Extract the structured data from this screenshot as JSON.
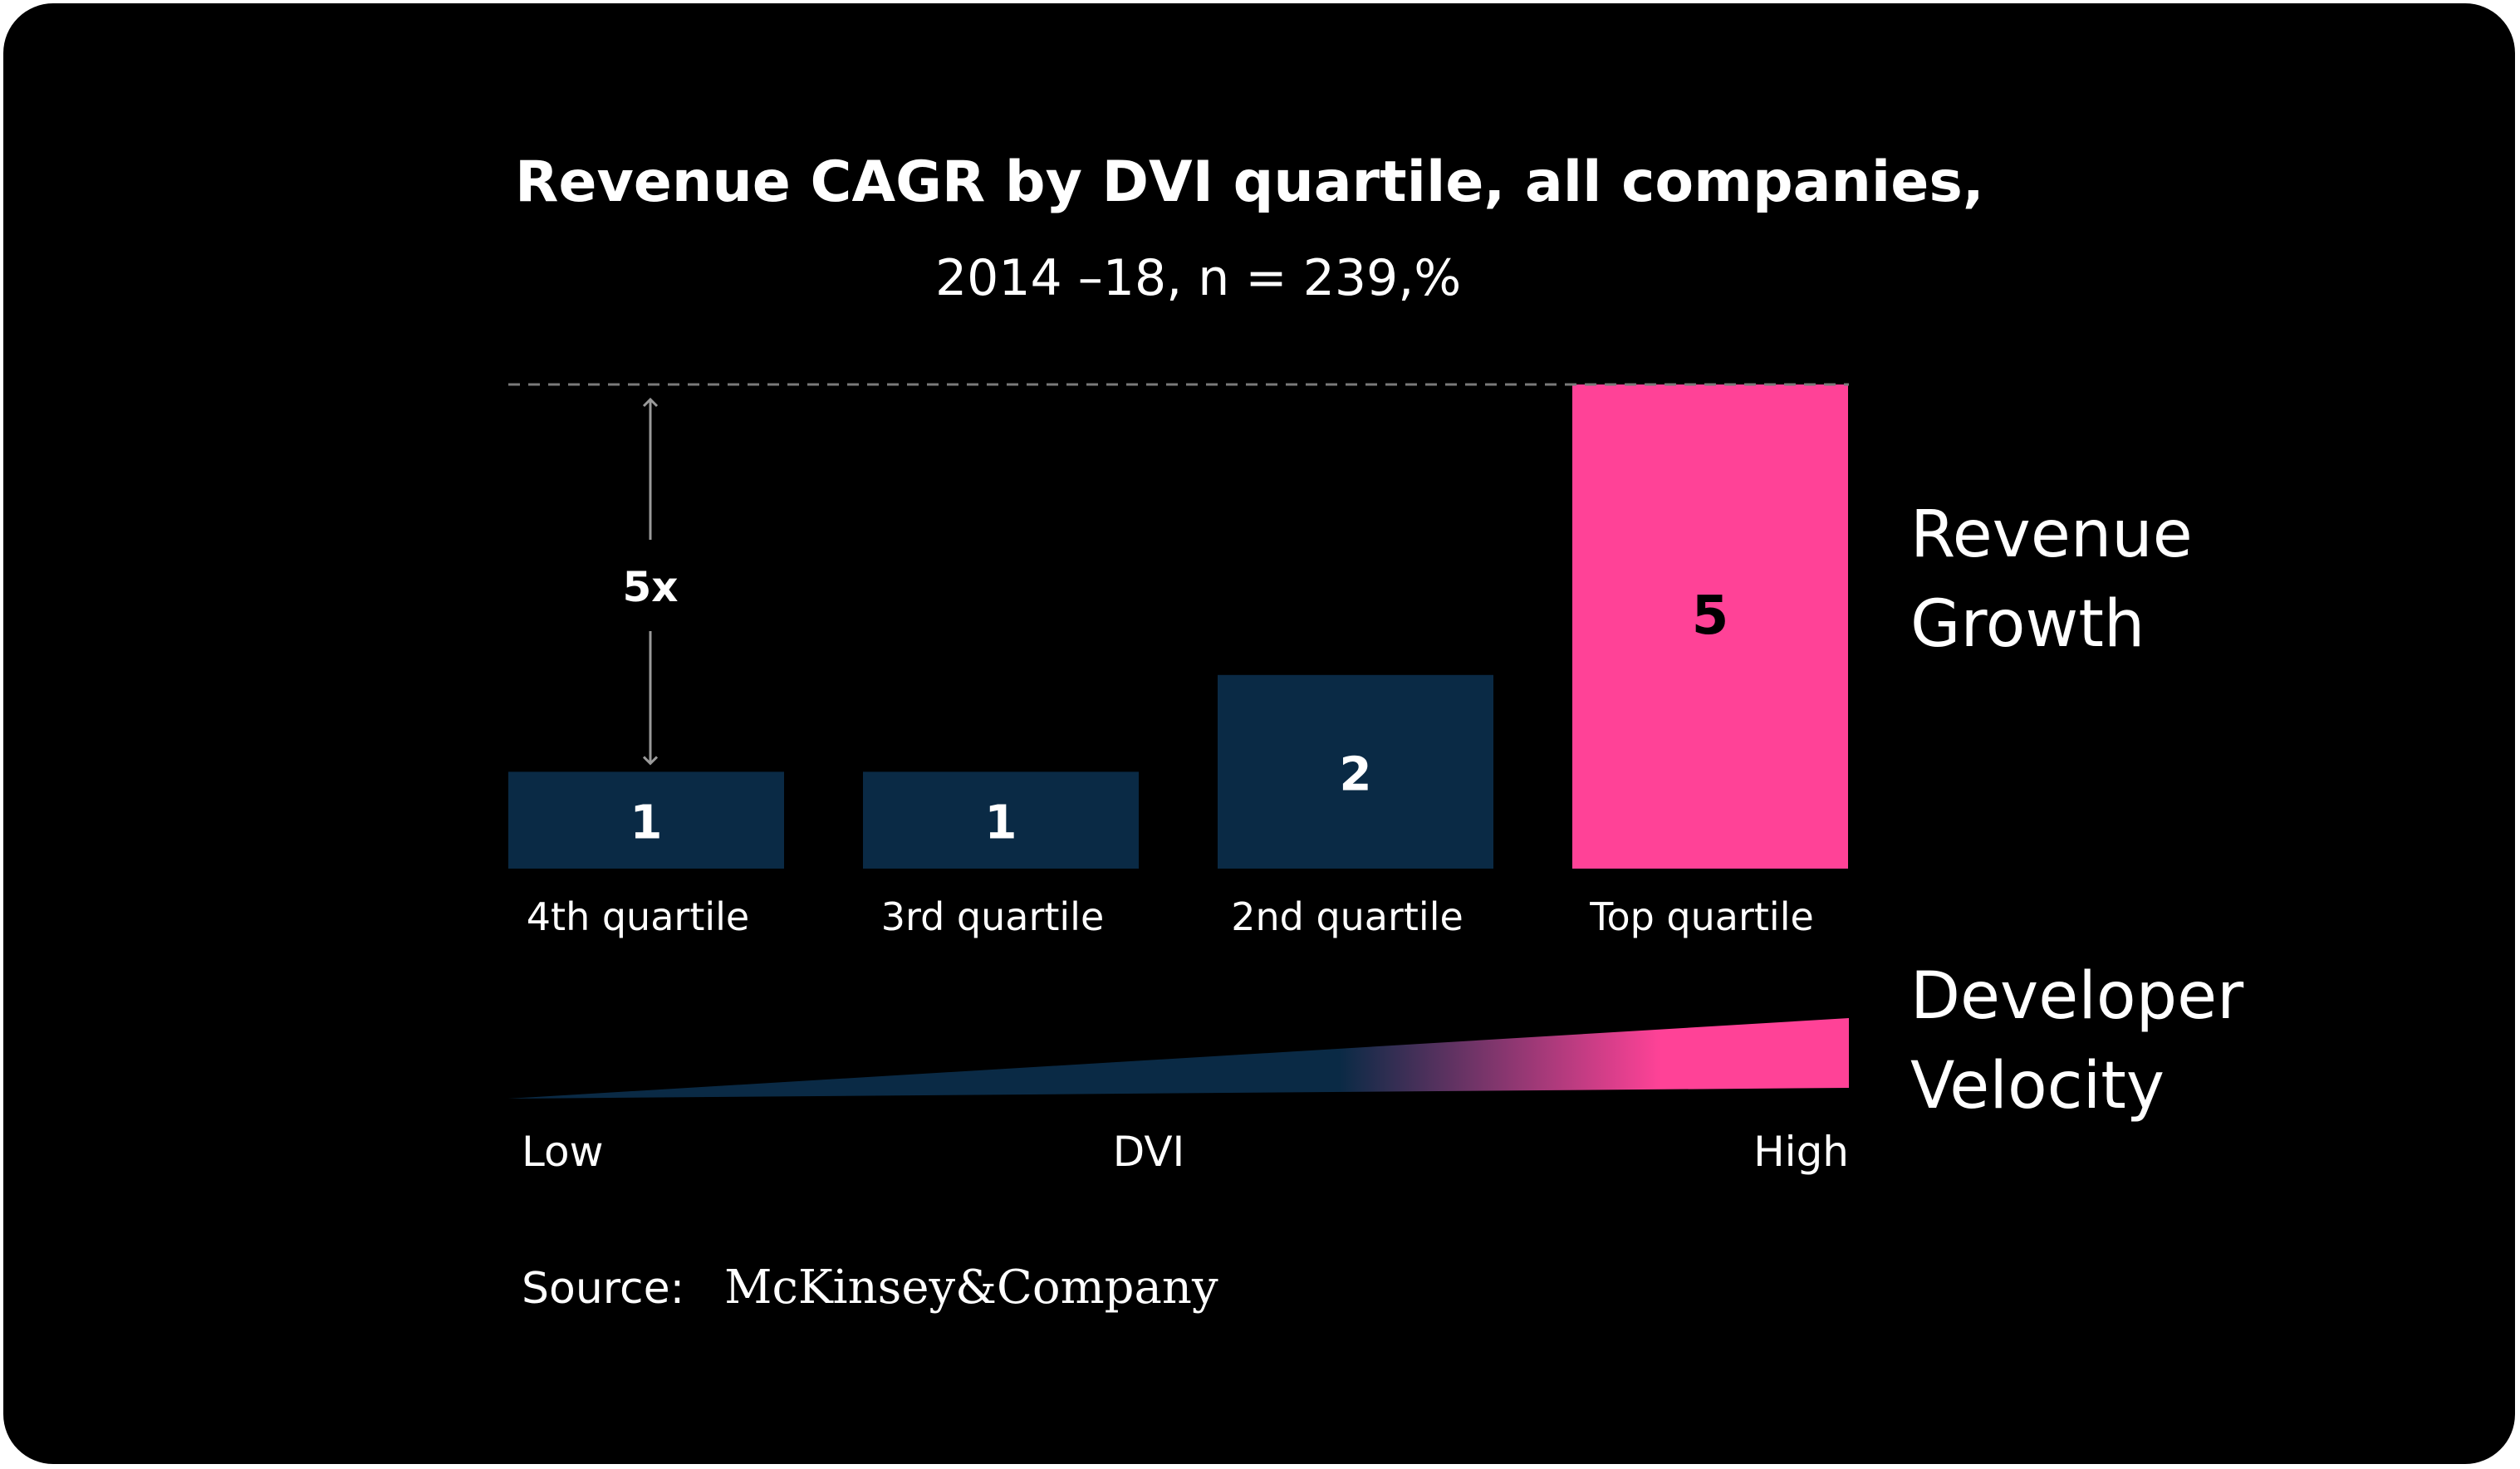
{
  "chart_data": {
    "type": "bar",
    "title": "Revenue CAGR by DVI quartile, all companies,",
    "subtitle": "2014 –18, n = 239,%",
    "categories": [
      "4th quartile",
      "3rd quartile",
      "2nd quartile",
      "Top quartile"
    ],
    "values": [
      1,
      1,
      2,
      5
    ],
    "data_labels": [
      "1",
      "1",
      "2",
      "5"
    ],
    "ylim": [
      0,
      5
    ],
    "grid": false,
    "reference_line": {
      "value": 5,
      "style": "dashed"
    },
    "annotation": {
      "text": "5x",
      "from": 1,
      "to": 5
    },
    "bar_colors": [
      "#0a2a45",
      "#0a2a45",
      "#0a2a45",
      "#ff4297"
    ],
    "label_colors": [
      "#ffffff",
      "#ffffff",
      "#ffffff",
      "#000000"
    ],
    "right_label": [
      "Revenue",
      "Growth"
    ],
    "dvi_axis": {
      "label_low": "Low",
      "label_mid": "DVI",
      "label_high": "High",
      "right_label": [
        "Developer",
        "Velocity"
      ]
    }
  },
  "source": {
    "label": "Source:",
    "logo_text": "McKinsey&Company"
  },
  "colors": {
    "background": "#000000",
    "navy": "#0a2a45",
    "pink": "#ff4297",
    "text": "#ffffff",
    "dashed": "#7a7a7a"
  }
}
